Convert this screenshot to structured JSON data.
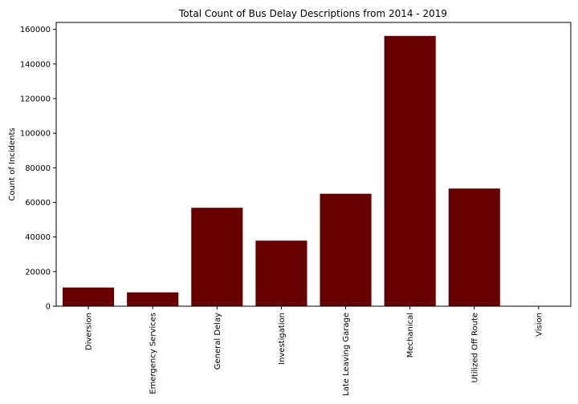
{
  "chart_data": {
    "type": "bar",
    "title": "Total Count of Bus Delay Descriptions from 2014 - 2019",
    "xlabel": "",
    "ylabel": "Count of Incidents",
    "categories": [
      "Diversion",
      "Emergency Services",
      "General Delay",
      "Investigation",
      "Late Leaving Garage",
      "Mechanical",
      "Utilized Off Route",
      "Vision"
    ],
    "values": [
      10800,
      8000,
      56900,
      37900,
      65000,
      156200,
      68000,
      30
    ],
    "ylim": [
      0,
      164000
    ],
    "yticks": [
      0,
      20000,
      40000,
      60000,
      80000,
      100000,
      120000,
      140000,
      160000
    ],
    "ytick_labels": [
      "0",
      "20000",
      "40000",
      "60000",
      "80000",
      "100000",
      "120000",
      "140000",
      "160000"
    ],
    "bar_color": "#660000",
    "grid": false,
    "legend": "none"
  }
}
